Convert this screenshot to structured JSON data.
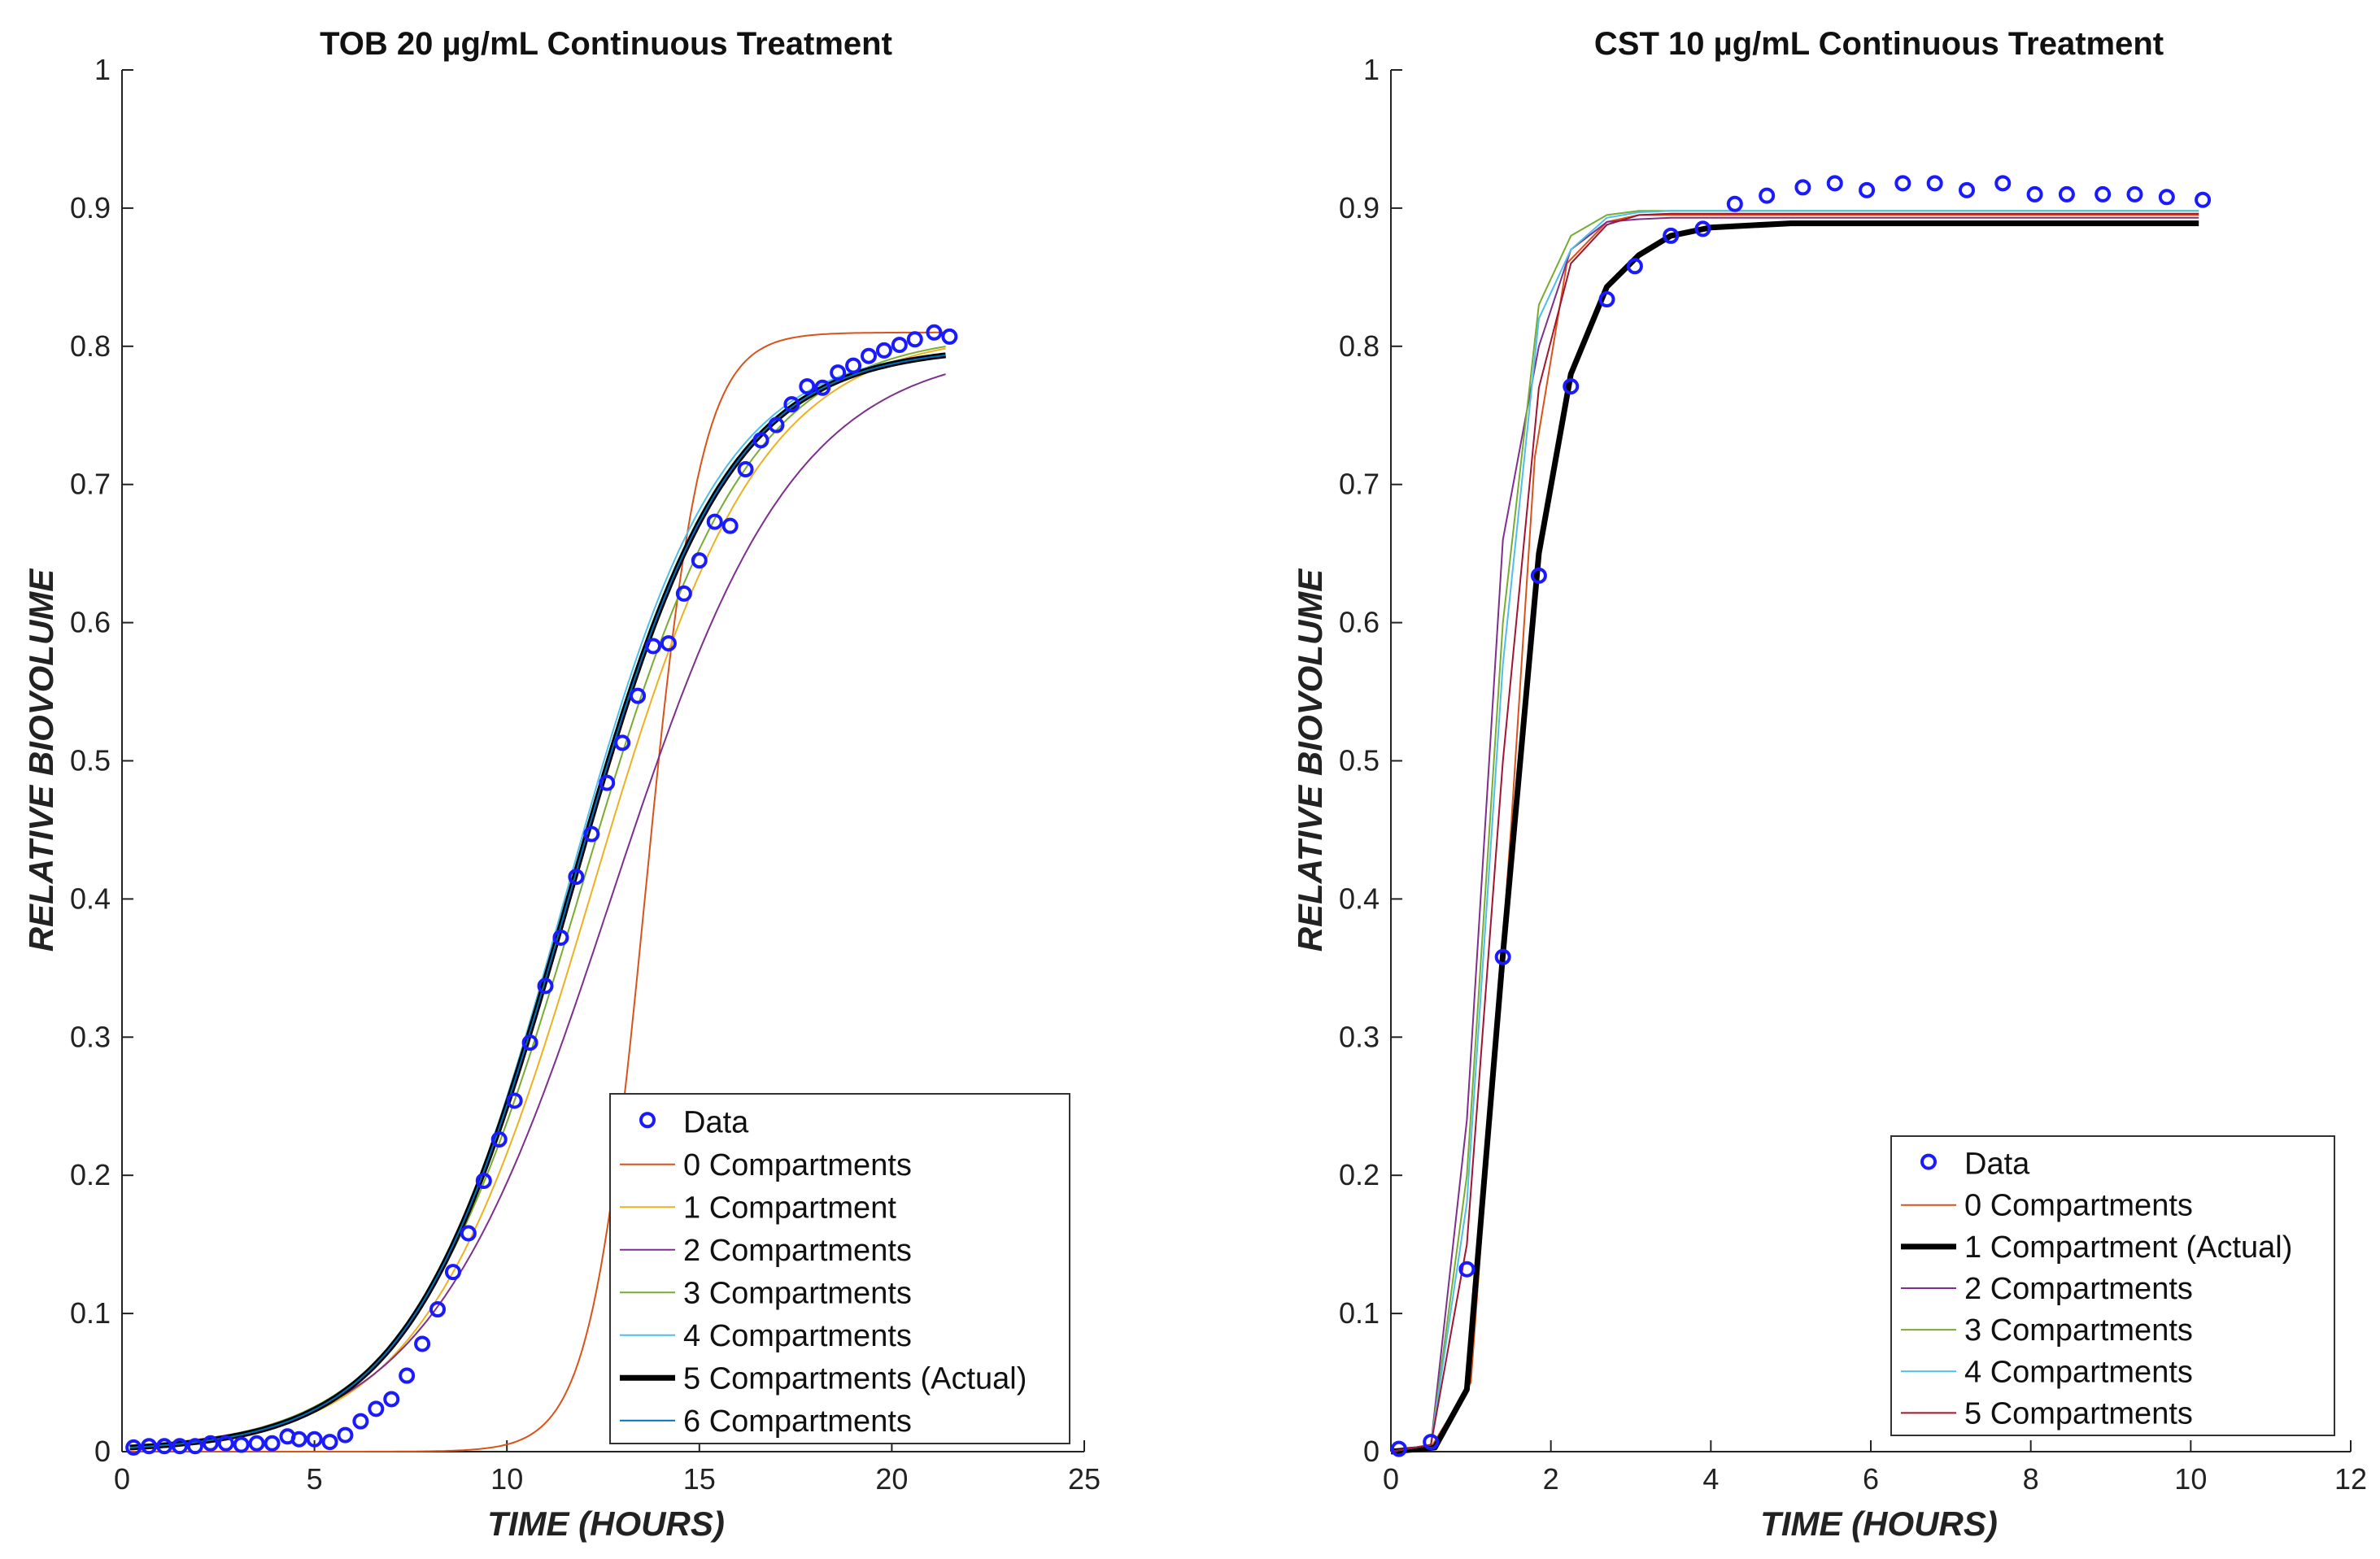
{
  "chart_data": [
    {
      "type": "line",
      "title": "TOB 20 µg/mL Continuous Treatment",
      "xlabel": "TIME (HOURS)",
      "ylabel": "RELATIVE BIOVOLUME",
      "xlim": [
        0,
        25
      ],
      "ylim": [
        0,
        1
      ],
      "xticks": [
        0,
        5,
        10,
        15,
        20,
        25
      ],
      "yticks": [
        0,
        0.1,
        0.2,
        0.3,
        0.4,
        0.5,
        0.6,
        0.7,
        0.8,
        0.9,
        1
      ],
      "legend_position": "bottom-right",
      "data_points": {
        "name": "Data",
        "color": "#1a1aff",
        "x": [
          0.3,
          0.7,
          1.1,
          1.5,
          1.9,
          2.3,
          2.7,
          3.1,
          3.5,
          3.9,
          4.3,
          4.6,
          5.0,
          5.4,
          5.8,
          6.2,
          6.6,
          7.0,
          7.4,
          7.8,
          8.2,
          8.6,
          9.0,
          9.4,
          9.8,
          10.2,
          10.6,
          11.0,
          11.4,
          11.8,
          12.2,
          12.6,
          13.0,
          13.4,
          13.8,
          14.2,
          14.6,
          15.0,
          15.4,
          15.8,
          16.2,
          16.6,
          17.0,
          17.4,
          17.8,
          18.2,
          18.6,
          19.0,
          19.4,
          19.8,
          20.2,
          20.6,
          21.1,
          21.5
        ],
        "y": [
          0.003,
          0.004,
          0.004,
          0.004,
          0.004,
          0.006,
          0.006,
          0.005,
          0.006,
          0.006,
          0.011,
          0.009,
          0.009,
          0.007,
          0.012,
          0.022,
          0.031,
          0.038,
          0.055,
          0.078,
          0.103,
          0.13,
          0.158,
          0.196,
          0.226,
          0.254,
          0.296,
          0.337,
          0.372,
          0.416,
          0.447,
          0.484,
          0.513,
          0.547,
          0.583,
          0.585,
          0.621,
          0.645,
          0.673,
          0.67,
          0.711,
          0.732,
          0.743,
          0.758,
          0.771,
          0.77,
          0.781,
          0.786,
          0.793,
          0.797,
          0.801,
          0.805,
          0.81,
          0.807
        ]
      },
      "series": [
        {
          "name": "0 Compartments",
          "color": "#d95319",
          "width": 2,
          "x0": 0.2,
          "x1": 21.4,
          "L": 0.81,
          "k": 1.4,
          "t0": 13.6
        },
        {
          "name": "1 Compartment",
          "color": "#edb120",
          "width": 2,
          "x0": 0.2,
          "x1": 21.4,
          "L": 0.81,
          "k": 0.46,
          "t0": 12.2
        },
        {
          "name": "2 Compartments",
          "color": "#7e2f8e",
          "width": 2,
          "x0": 0.2,
          "x1": 21.4,
          "L": 0.8,
          "k": 0.42,
          "t0": 12.7
        },
        {
          "name": "3 Compartments",
          "color": "#77ac30",
          "width": 2,
          "x0": 0.2,
          "x1": 21.4,
          "L": 0.81,
          "k": 0.46,
          "t0": 11.9
        },
        {
          "name": "4 Compartments",
          "color": "#4dbeee",
          "width": 2,
          "x0": 0.2,
          "x1": 21.4,
          "L": 0.8,
          "k": 0.5,
          "t0": 11.5
        },
        {
          "name": "5 Compartments (Actual)",
          "color": "#000000",
          "width": 7,
          "x0": 0.2,
          "x1": 21.4,
          "L": 0.8,
          "k": 0.49,
          "t0": 11.6
        },
        {
          "name": "6 Compartments",
          "color": "#0072bd",
          "width": 2,
          "x0": 0.2,
          "x1": 21.4,
          "L": 0.8,
          "k": 0.49,
          "t0": 11.6
        }
      ]
    },
    {
      "type": "line",
      "title": "CST 10 µg/mL Continuous Treatment",
      "xlabel": "TIME (HOURS)",
      "ylabel": "RELATIVE BIOVOLUME",
      "xlim": [
        0,
        12
      ],
      "ylim": [
        0,
        1
      ],
      "xticks": [
        0,
        2,
        4,
        6,
        8,
        10,
        12
      ],
      "yticks": [
        0,
        0.1,
        0.2,
        0.3,
        0.4,
        0.5,
        0.6,
        0.7,
        0.8,
        0.9,
        1
      ],
      "legend_position": "bottom-right",
      "data_points": {
        "name": "Data",
        "color": "#1a1aff",
        "x": [
          0.1,
          0.5,
          0.95,
          1.4,
          1.85,
          2.25,
          2.7,
          3.05,
          3.5,
          3.9,
          4.3,
          4.7,
          5.15,
          5.55,
          5.95,
          6.4,
          6.8,
          7.2,
          7.65,
          8.05,
          8.45,
          8.9,
          9.3,
          9.7,
          10.15
        ],
        "y": [
          0.002,
          0.007,
          0.132,
          0.358,
          0.634,
          0.771,
          0.834,
          0.858,
          0.88,
          0.885,
          0.903,
          0.909,
          0.915,
          0.918,
          0.913,
          0.918,
          0.918,
          0.913,
          0.918,
          0.91,
          0.91,
          0.91,
          0.91,
          0.908,
          0.906
        ]
      },
      "series": [
        {
          "name": "0 Compartments",
          "color": "#d95319",
          "width": 2,
          "x": [
            0,
            0.5,
            1.0,
            1.5,
            1.8,
            2.2,
            2.7,
            3.1,
            3.5,
            4.0,
            5.0,
            10.1
          ],
          "y": [
            0,
            0.003,
            0.05,
            0.45,
            0.72,
            0.86,
            0.89,
            0.895,
            0.895,
            0.895,
            0.895,
            0.895
          ]
        },
        {
          "name": "1 Compartment (Actual)",
          "color": "#000000",
          "width": 7,
          "x": [
            0,
            0.55,
            0.95,
            1.4,
            1.85,
            2.25,
            2.7,
            3.1,
            3.5,
            4.0,
            5.0,
            10.1
          ],
          "y": [
            0,
            0.003,
            0.045,
            0.36,
            0.65,
            0.78,
            0.843,
            0.866,
            0.88,
            0.886,
            0.889,
            0.889
          ]
        },
        {
          "name": "2 Compartments",
          "color": "#7e2f8e",
          "width": 2,
          "x": [
            0,
            0.5,
            0.95,
            1.4,
            1.85,
            2.25,
            2.7,
            3.1,
            3.5,
            4.0,
            10.1
          ],
          "y": [
            0,
            0.005,
            0.24,
            0.66,
            0.8,
            0.87,
            0.89,
            0.892,
            0.893,
            0.893,
            0.893
          ]
        },
        {
          "name": "3 Compartments",
          "color": "#77ac30",
          "width": 2,
          "x": [
            0,
            0.5,
            0.95,
            1.4,
            1.85,
            2.25,
            2.7,
            3.1,
            3.5,
            4.0,
            10.1
          ],
          "y": [
            0,
            0.005,
            0.2,
            0.6,
            0.83,
            0.88,
            0.895,
            0.898,
            0.898,
            0.898,
            0.898
          ]
        },
        {
          "name": "4 Compartments",
          "color": "#4dbeee",
          "width": 2,
          "x": [
            0,
            0.5,
            0.95,
            1.4,
            1.85,
            2.25,
            2.7,
            3.1,
            3.5,
            4.0,
            10.1
          ],
          "y": [
            0,
            0.005,
            0.18,
            0.57,
            0.82,
            0.87,
            0.893,
            0.897,
            0.898,
            0.898,
            0.898
          ]
        },
        {
          "name": "5 Compartments",
          "color": "#a2142f",
          "width": 2,
          "x": [
            0,
            0.5,
            0.95,
            1.4,
            1.85,
            2.25,
            2.7,
            3.1,
            3.5,
            4.0,
            10.1
          ],
          "y": [
            0,
            0.005,
            0.15,
            0.5,
            0.77,
            0.86,
            0.888,
            0.895,
            0.896,
            0.896,
            0.896
          ]
        }
      ]
    }
  ]
}
